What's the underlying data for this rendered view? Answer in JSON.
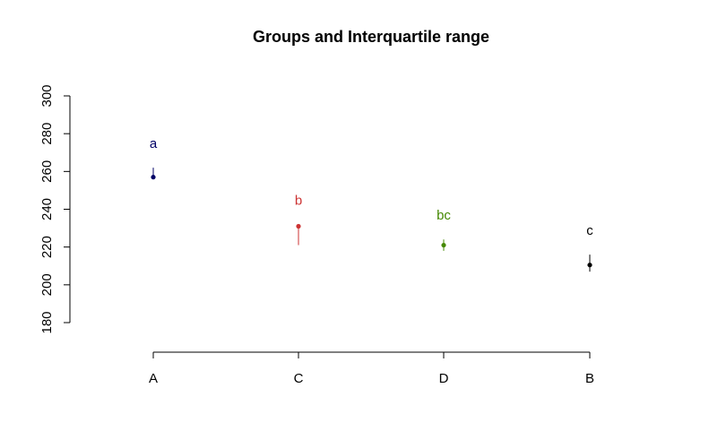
{
  "chart_data": {
    "type": "scatter",
    "title": "Groups and Interquartile range",
    "xlabel": "",
    "ylabel": "",
    "categories": [
      "A",
      "C",
      "D",
      "B"
    ],
    "values": [
      257,
      231,
      221,
      210.5
    ],
    "iqr_low": [
      256,
      221,
      218,
      207
    ],
    "iqr_high": [
      262,
      232,
      224,
      216
    ],
    "group_labels": [
      "a",
      "b",
      "bc",
      "c"
    ],
    "colors": [
      "#000066",
      "#cc3333",
      "#448800",
      "#000000"
    ],
    "ylim": [
      180,
      300
    ],
    "yticks": [
      "180",
      "200",
      "220",
      "240",
      "260",
      "280",
      "300"
    ],
    "grid": false,
    "legend": "none"
  }
}
